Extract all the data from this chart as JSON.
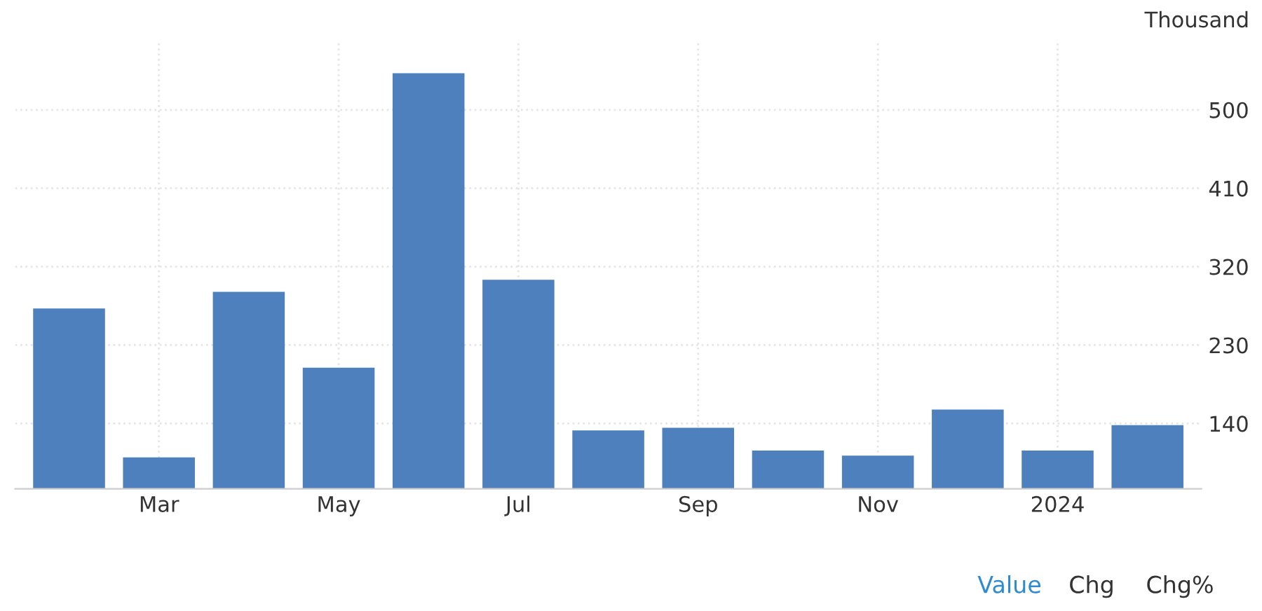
{
  "chart_data": {
    "type": "bar",
    "ylabel": "Thousand",
    "categories": [
      null,
      "Mar",
      null,
      "May",
      null,
      "Jul",
      null,
      "Sep",
      null,
      "Nov",
      null,
      "2024",
      null
    ],
    "values": [
      272,
      101,
      291,
      204,
      542,
      305,
      132,
      135,
      109,
      103,
      156,
      109,
      138
    ],
    "color": "#4e80bd",
    "ylim": [
      65,
      577
    ],
    "yticks": [
      140,
      230,
      320,
      410,
      500
    ],
    "grid": true,
    "annotations": [
      "Value",
      "Chg",
      "Chg%"
    ]
  }
}
